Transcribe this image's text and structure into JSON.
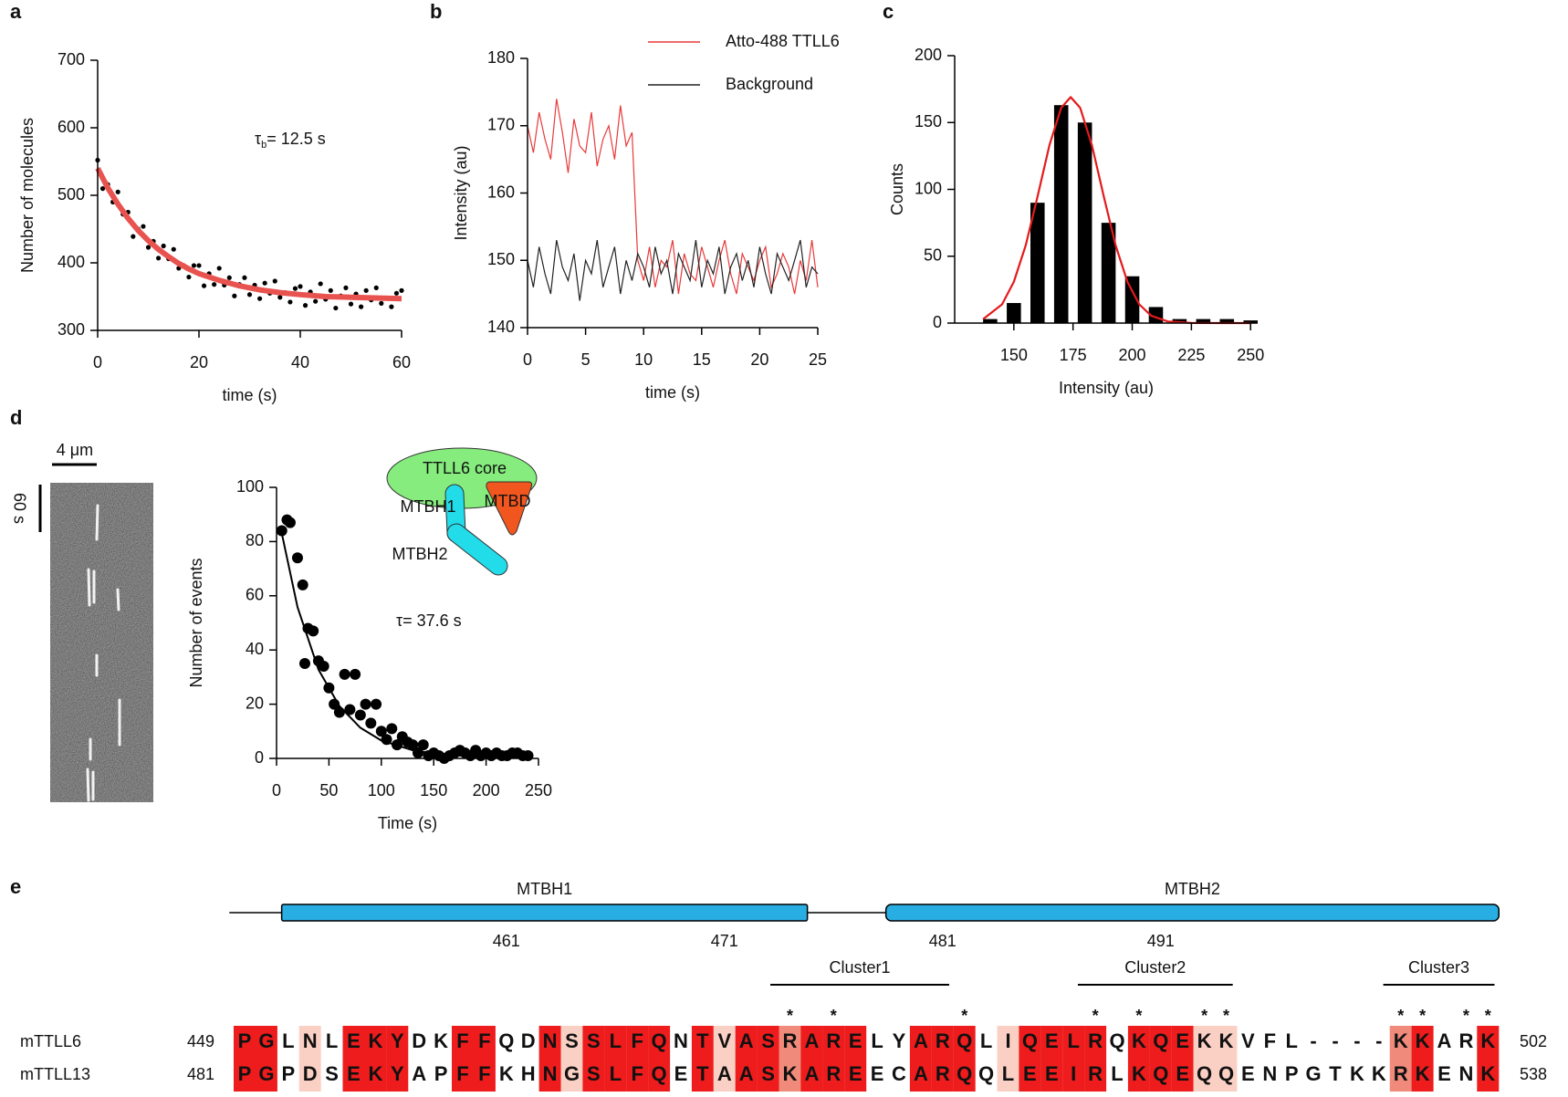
{
  "chart_data": [
    {
      "panel": "a",
      "type": "scatter",
      "xlabel": "time (s)",
      "ylabel": "Number of molecules",
      "xlim": [
        0,
        60
      ],
      "ylim": [
        300,
        700
      ],
      "xticks": [
        0,
        20,
        40,
        60
      ],
      "yticks": [
        300,
        400,
        500,
        600,
        700
      ],
      "series": [
        {
          "color": "#000000",
          "x": [
            0,
            1,
            2,
            3,
            4,
            5,
            6,
            7,
            8,
            9,
            10,
            11,
            12,
            13,
            14,
            15,
            16,
            17,
            18,
            19,
            20,
            21,
            22,
            23,
            24,
            25,
            26,
            27,
            28,
            29,
            30,
            31,
            32,
            33,
            34,
            35,
            36,
            37,
            38,
            39,
            40,
            41,
            42,
            43,
            44,
            45,
            46,
            47,
            48,
            49,
            50,
            51,
            52,
            53,
            54,
            55,
            56,
            57,
            58,
            59,
            60
          ],
          "values": [
            552,
            510,
            516,
            490,
            505,
            472,
            475,
            439,
            450,
            454,
            423,
            432,
            407,
            425,
            406,
            420,
            392,
            396,
            379,
            396,
            396,
            366,
            384,
            368,
            392,
            367,
            378,
            351,
            368,
            378,
            353,
            367,
            347,
            370,
            355,
            373,
            349,
            356,
            342,
            362,
            365,
            337,
            357,
            343,
            369,
            346,
            359,
            333,
            351,
            363,
            339,
            354,
            335,
            359,
            345,
            363,
            340,
            348,
            335,
            355,
            359
          ]
        }
      ],
      "fit": {
        "color": "#e8524f",
        "x": [
          0,
          2,
          4,
          6,
          8,
          10,
          12,
          14,
          16,
          18,
          20,
          24,
          28,
          32,
          36,
          40,
          45,
          50,
          55,
          60
        ],
        "values": [
          540,
          511,
          487,
          466,
          448,
          433,
          420,
          409,
          399,
          391,
          384,
          374,
          366,
          360,
          356,
          353,
          350,
          349,
          348,
          347
        ]
      },
      "annotation": {
        "symbol": "τ",
        "subscript": "b",
        "text": "= 12.5 s"
      }
    },
    {
      "panel": "b",
      "type": "line",
      "xlabel": "time (s)",
      "ylabel": "Intensity (au)",
      "xlim": [
        0,
        25
      ],
      "ylim": [
        140,
        180
      ],
      "xticks": [
        0,
        5,
        10,
        15,
        20,
        25
      ],
      "yticks": [
        140,
        150,
        160,
        170,
        180
      ],
      "legend": "top-right",
      "x": [
        0,
        0.5,
        1,
        1.5,
        2,
        2.5,
        3,
        3.5,
        4,
        4.5,
        5,
        5.5,
        6,
        6.5,
        7,
        7.5,
        8,
        8.5,
        9,
        9.5,
        10,
        10.5,
        11,
        11.5,
        12,
        12.5,
        13,
        13.5,
        14,
        14.5,
        15,
        15.5,
        16,
        16.5,
        17,
        17.5,
        18,
        18.5,
        19,
        19.5,
        20,
        20.5,
        21,
        21.5,
        22,
        22.5,
        23,
        23.5,
        24,
        24.5,
        25
      ],
      "series": [
        {
          "name": "Atto-488 TTLL6",
          "color": "#e8393a",
          "values": [
            170,
            166,
            172,
            168,
            165,
            174,
            169,
            163,
            171,
            167,
            166,
            172,
            164,
            168,
            170,
            165,
            173,
            167,
            169,
            150,
            147,
            152,
            146,
            150,
            149,
            153,
            145,
            151,
            148,
            147,
            152,
            149,
            146,
            150,
            153,
            148,
            145,
            151,
            149,
            147,
            150,
            152,
            146,
            148,
            151,
            149,
            145,
            150,
            147,
            153,
            146
          ]
        },
        {
          "name": "Background",
          "color": "#222222",
          "values": [
            150,
            146,
            152,
            148,
            145,
            153,
            149,
            147,
            151,
            144,
            150,
            148,
            153,
            146,
            149,
            152,
            145,
            150,
            147,
            151,
            149,
            146,
            152,
            148,
            150,
            145,
            151,
            149,
            147,
            153,
            146,
            150,
            148,
            152,
            145,
            149,
            151,
            147,
            150,
            146,
            152,
            148,
            145,
            151,
            149,
            147,
            150,
            153,
            146,
            149,
            148
          ]
        }
      ]
    },
    {
      "panel": "c",
      "type": "histogram",
      "xlabel": "Intensity (au)",
      "ylabel": "Counts",
      "xlim": [
        125,
        253
      ],
      "ylim": [
        0,
        200
      ],
      "xticks": [
        150,
        175,
        200,
        225,
        250
      ],
      "yticks": [
        0,
        50,
        100,
        150,
        200
      ],
      "color": "#000000",
      "bins": [
        135,
        145,
        155,
        165,
        175,
        185,
        195,
        205,
        215,
        225,
        235,
        245,
        255
      ],
      "values": [
        3,
        15,
        90,
        163,
        150,
        75,
        35,
        12,
        3,
        3,
        3,
        2
      ],
      "fit": {
        "color": "#e41a1c",
        "x": [
          137,
          145,
          150,
          155,
          160,
          165,
          170,
          174,
          178,
          183,
          188,
          193,
          198,
          203,
          208,
          215,
          225,
          240,
          250
        ],
        "values": [
          2.9,
          14,
          30.8,
          58,
          94.6,
          133,
          161,
          169,
          161,
          133,
          94.6,
          58,
          30.8,
          14,
          5.5,
          1.2,
          0.1,
          0,
          0
        ]
      }
    },
    {
      "panel": "d",
      "type": "scatter",
      "xlabel": "Time (s)",
      "ylabel": "Number of events",
      "xlim": [
        0,
        250
      ],
      "ylim": [
        0,
        100
      ],
      "xticks": [
        0,
        50,
        100,
        150,
        200,
        250
      ],
      "yticks": [
        0,
        20,
        40,
        60,
        80,
        100
      ],
      "series": [
        {
          "color": "#000000",
          "x": [
            5,
            10,
            13,
            20,
            25,
            27,
            30,
            35,
            40,
            45,
            50,
            55,
            60,
            65,
            70,
            75,
            80,
            85,
            90,
            95,
            100,
            105,
            110,
            115,
            120,
            125,
            130,
            135,
            140,
            145,
            150,
            155,
            160,
            165,
            170,
            175,
            180,
            185,
            190,
            195,
            200,
            205,
            210,
            215,
            220,
            225,
            230,
            235,
            240
          ],
          "values": [
            84,
            88,
            87,
            74,
            64,
            35,
            48,
            47,
            36,
            34,
            26,
            20,
            17,
            31,
            18,
            31,
            16,
            20,
            13,
            20,
            10,
            7,
            11,
            5,
            8,
            6,
            5,
            2,
            5,
            1,
            2,
            1,
            0,
            1,
            2,
            3,
            2,
            1,
            3,
            1,
            2,
            1,
            2,
            1,
            1,
            2,
            2,
            1,
            1
          ]
        }
      ],
      "fit": {
        "color": "#000000",
        "x": [
          5,
          20,
          40,
          60,
          80,
          100,
          130,
          160,
          200,
          240
        ],
        "values": [
          83.1,
          55.8,
          32.8,
          19.3,
          11.3,
          6.6,
          3.0,
          1.3,
          0.5,
          0.2
        ]
      },
      "annotation": {
        "symbol": "τ",
        "text": "= 37.6 s"
      }
    }
  ],
  "kymograph": {
    "scale_distance": "4 μm",
    "scale_time": "60 s"
  },
  "schematic": {
    "core": "TTLL6 core",
    "helix1": "MTBH1",
    "domain": "MTBD",
    "helix2": "MTBH2"
  },
  "alignment": {
    "panel": "e",
    "helix_color": "#29aee3",
    "helices": [
      {
        "name": "MTBH1",
        "start_column": 2.7,
        "end_column": 26.8
      },
      {
        "name": "MTBH2",
        "start_column": 30.4,
        "end_column": 58.5
      }
    ],
    "position_labels": [
      461,
      471,
      481,
      491
    ],
    "clusters": [
      {
        "name": "Cluster1",
        "start_column": 25.1,
        "end_column": 33.3
      },
      {
        "name": "Cluster2",
        "start_column": 39.2,
        "end_column": 46.3
      },
      {
        "name": "Cluster3",
        "start_column": 53.2,
        "end_column": 58.3
      }
    ],
    "conservation_marks": {
      "text": "*",
      "color": "#1f2bf0",
      "columns": [
        26,
        28,
        34,
        40,
        42,
        45,
        46,
        54,
        55,
        57,
        58
      ]
    },
    "rows": [
      {
        "name": "mTTLL6",
        "start": 449,
        "end": 502,
        "residues": [
          "P",
          "G",
          "L",
          "N",
          "L",
          "E",
          "K",
          "Y",
          "D",
          "K",
          "F",
          "F",
          "Q",
          "D",
          "N",
          "S",
          "S",
          "L",
          "F",
          "Q",
          "N",
          "T",
          "V",
          "A",
          "S",
          "R",
          "A",
          "R",
          "E",
          "L",
          "Y",
          "A",
          "R",
          "Q",
          "L",
          "I",
          "Q",
          "E",
          "L",
          "R",
          "Q",
          "K",
          "Q",
          "E",
          "K",
          "K",
          "V",
          "F",
          "L",
          "-",
          "-",
          "-",
          "-",
          "K",
          "K",
          "A",
          "R",
          "K"
        ]
      },
      {
        "name": "mTTLL13",
        "start": 481,
        "end": 538,
        "residues": [
          "P",
          "G",
          "P",
          "D",
          "S",
          "E",
          "K",
          "Y",
          "A",
          "P",
          "F",
          "F",
          "K",
          "H",
          "N",
          "G",
          "S",
          "L",
          "F",
          "Q",
          "E",
          "T",
          "A",
          "A",
          "S",
          "K",
          "A",
          "R",
          "E",
          "E",
          "C",
          "A",
          "R",
          "Q",
          "Q",
          "L",
          "E",
          "E",
          "I",
          "R",
          "L",
          "K",
          "Q",
          "E",
          "Q",
          "Q",
          "E",
          "N",
          "P",
          "G",
          "T",
          "K",
          "K",
          "R",
          "K",
          "E",
          "N",
          "K"
        ]
      }
    ],
    "shading": [
      "#ee1c1c",
      "#ee1c1c",
      null,
      "#fbd0c4",
      null,
      "#ee1c1c",
      "#ee1c1c",
      "#ee1c1c",
      null,
      null,
      "#ee1c1c",
      "#ee1c1c",
      null,
      null,
      "#ee1c1c",
      "#fbd0c4",
      "#ee1c1c",
      "#ee1c1c",
      "#ee1c1c",
      "#ee1c1c",
      null,
      "#ee1c1c",
      "#fbd0c4",
      "#ee1c1c",
      "#ee1c1c",
      "#f08a7a",
      "#ee1c1c",
      "#ee1c1c",
      "#ee1c1c",
      null,
      null,
      "#ee1c1c",
      "#ee1c1c",
      "#ee1c1c",
      null,
      "#fbd0c4",
      "#ee1c1c",
      "#ee1c1c",
      "#ee1c1c",
      "#ee1c1c",
      null,
      "#ee1c1c",
      "#ee1c1c",
      "#ee1c1c",
      "#fbd0c4",
      "#fbd0c4",
      null,
      null,
      null,
      null,
      null,
      null,
      null,
      "#f08a7a",
      "#ee1c1c",
      null,
      null,
      "#ee1c1c"
    ]
  }
}
